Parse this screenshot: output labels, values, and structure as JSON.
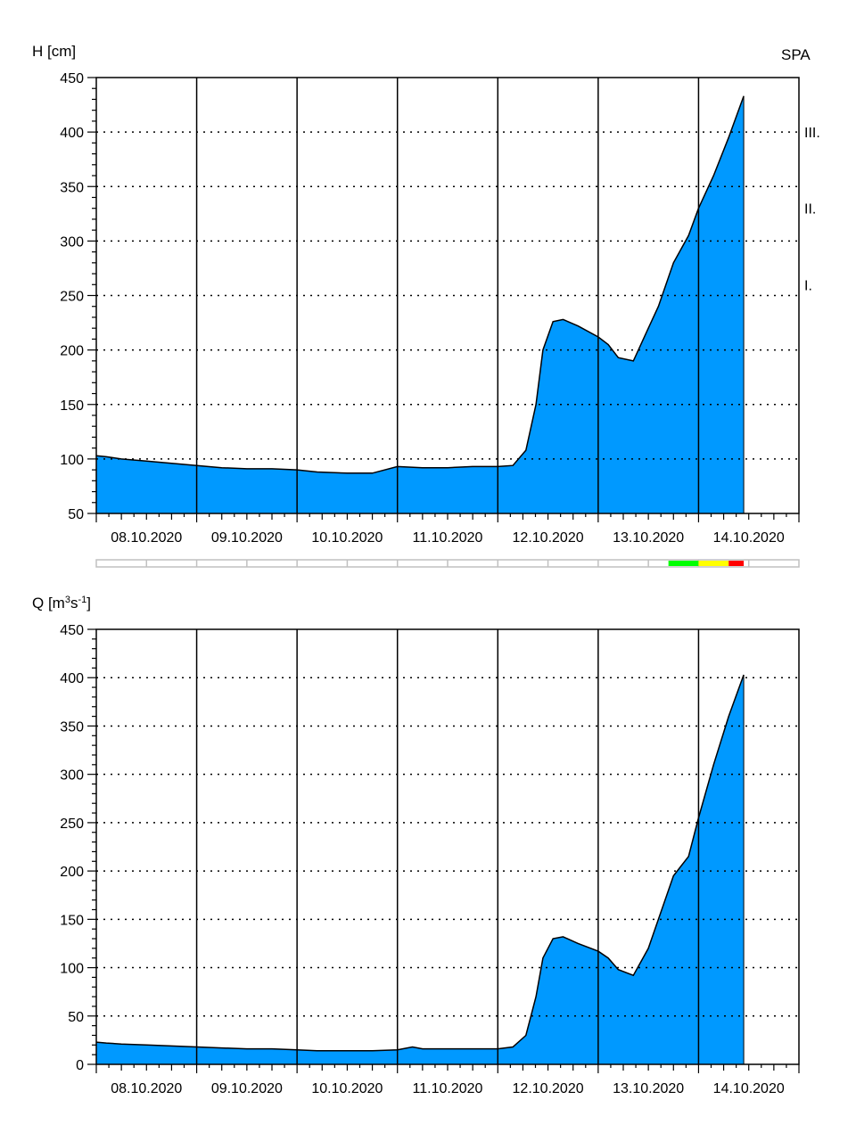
{
  "chart_data": [
    {
      "type": "area",
      "ylabel": "H [cm]",
      "station": "SPA",
      "ylim": [
        50,
        450
      ],
      "yticks": [
        50,
        100,
        150,
        200,
        250,
        300,
        350,
        400,
        450
      ],
      "categories": [
        "08.10.2020",
        "09.10.2020",
        "10.10.2020",
        "11.10.2020",
        "12.10.2020",
        "13.10.2020",
        "14.10.2020"
      ],
      "x_range_days": [
        0,
        7
      ],
      "grid": true,
      "series_color": "#0099FF",
      "bands": [
        {
          "from": 260,
          "to": 330,
          "color": "#00FF00",
          "label": "I."
        },
        {
          "from": 330,
          "to": 400,
          "color": "#FFFF00",
          "label": "II."
        },
        {
          "from": 400,
          "to": 450,
          "color": "#FF0000",
          "label": "III."
        }
      ],
      "x": [
        0,
        0.1,
        0.25,
        0.5,
        0.75,
        1.0,
        1.25,
        1.5,
        1.75,
        2.0,
        2.2,
        2.5,
        2.75,
        3.0,
        3.25,
        3.5,
        3.75,
        4.0,
        4.15,
        4.28,
        4.38,
        4.45,
        4.55,
        4.65,
        4.8,
        5.0,
        5.1,
        5.2,
        5.35,
        5.5,
        5.6,
        5.75,
        5.9,
        6.0,
        6.15,
        6.3,
        6.45
      ],
      "values": [
        103,
        102,
        100,
        98,
        96,
        94,
        92,
        91,
        91,
        90,
        88,
        87,
        87,
        93,
        92,
        92,
        93,
        93,
        94,
        108,
        150,
        200,
        226,
        228,
        222,
        212,
        205,
        193,
        190,
        220,
        240,
        280,
        305,
        330,
        360,
        395,
        433
      ],
      "status_bar": [
        {
          "from_day": 5.7,
          "to_day": 6.0,
          "color": "#00FF00"
        },
        {
          "from_day": 6.0,
          "to_day": 6.3,
          "color": "#FFFF00"
        },
        {
          "from_day": 6.3,
          "to_day": 6.45,
          "color": "#FF0000"
        }
      ]
    },
    {
      "type": "area",
      "ylabel_main": "Q [m",
      "ylabel_sup1": "3",
      "ylabel_mid": "s",
      "ylabel_sup2": "-1",
      "ylabel_end": "]",
      "ylim": [
        0,
        450
      ],
      "yticks": [
        0,
        50,
        100,
        150,
        200,
        250,
        300,
        350,
        400,
        450
      ],
      "categories": [
        "08.10.2020",
        "09.10.2020",
        "10.10.2020",
        "11.10.2020",
        "12.10.2020",
        "13.10.2020",
        "14.10.2020"
      ],
      "x_range_days": [
        0,
        7
      ],
      "grid": true,
      "series_color": "#0099FF",
      "x": [
        0,
        0.1,
        0.25,
        0.5,
        0.75,
        1.0,
        1.25,
        1.5,
        1.75,
        2.0,
        2.2,
        2.5,
        2.75,
        3.0,
        3.15,
        3.25,
        3.5,
        3.75,
        4.0,
        4.15,
        4.28,
        4.38,
        4.45,
        4.55,
        4.65,
        4.8,
        5.0,
        5.1,
        5.2,
        5.35,
        5.5,
        5.6,
        5.75,
        5.9,
        6.0,
        6.15,
        6.3,
        6.45
      ],
      "values": [
        23,
        22,
        21,
        20,
        19,
        18,
        17,
        16,
        16,
        15,
        14,
        14,
        14,
        15,
        18,
        16,
        16,
        16,
        16,
        18,
        30,
        70,
        110,
        130,
        132,
        125,
        117,
        110,
        98,
        92,
        120,
        150,
        195,
        215,
        255,
        310,
        360,
        403
      ]
    }
  ]
}
